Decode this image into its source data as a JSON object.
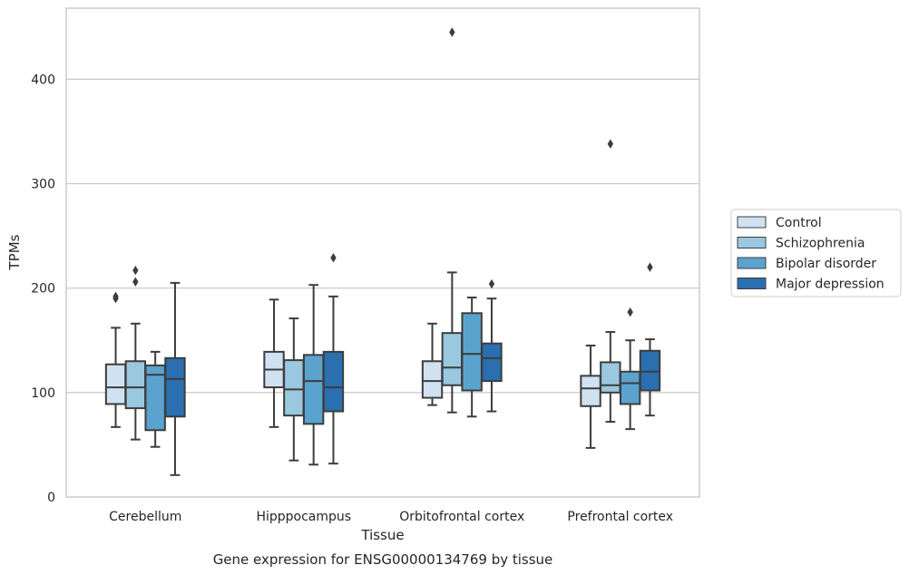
{
  "chart_data": {
    "type": "boxplot",
    "xlabel": "Tissue",
    "ylabel": "TPMs",
    "caption": "Gene expression for ENSG00000134769 by tissue",
    "categories": [
      "Cerebellum",
      "Hipppocampus",
      "Orbitofrontal cortex",
      "Prefrontal cortex"
    ],
    "ylim": [
      0,
      468
    ],
    "yticks": [
      "0",
      "100",
      "200",
      "300",
      "400"
    ],
    "grid": true,
    "legend_position": "right",
    "series": [
      {
        "name": "Control",
        "color": "#d0e1f2",
        "boxes": [
          {
            "whislo": 67,
            "q1": 89,
            "med": 105,
            "q3": 127,
            "whishi": 162,
            "fliers": [
              190,
              192
            ]
          },
          {
            "whislo": 67,
            "q1": 105,
            "med": 122,
            "q3": 139,
            "whishi": 189,
            "fliers": []
          },
          {
            "whislo": 88,
            "q1": 95,
            "med": 111,
            "q3": 130,
            "whishi": 166,
            "fliers": []
          },
          {
            "whislo": 47,
            "q1": 87,
            "med": 104,
            "q3": 116,
            "whishi": 145,
            "fliers": []
          }
        ]
      },
      {
        "name": "Schizophrenia",
        "color": "#9ac8e0",
        "boxes": [
          {
            "whislo": 55,
            "q1": 85,
            "med": 105,
            "q3": 130,
            "whishi": 166,
            "fliers": [
              206,
              217
            ]
          },
          {
            "whislo": 35,
            "q1": 78,
            "med": 103,
            "q3": 131,
            "whishi": 171,
            "fliers": []
          },
          {
            "whislo": 81,
            "q1": 107,
            "med": 124,
            "q3": 157,
            "whishi": 215,
            "fliers": [
              445
            ]
          },
          {
            "whislo": 72,
            "q1": 100,
            "med": 107,
            "q3": 129,
            "whishi": 158,
            "fliers": [
              338
            ]
          }
        ]
      },
      {
        "name": "Bipolar disorder",
        "color": "#5ba3cf",
        "boxes": [
          {
            "whislo": 48,
            "q1": 64,
            "med": 117,
            "q3": 126,
            "whishi": 139,
            "fliers": []
          },
          {
            "whislo": 31,
            "q1": 70,
            "med": 111,
            "q3": 136,
            "whishi": 203,
            "fliers": []
          },
          {
            "whislo": 77,
            "q1": 102,
            "med": 137,
            "q3": 176,
            "whishi": 191,
            "fliers": []
          },
          {
            "whislo": 65,
            "q1": 89,
            "med": 109,
            "q3": 120,
            "whishi": 150,
            "fliers": [
              177
            ]
          }
        ]
      },
      {
        "name": "Major depression",
        "color": "#2a6fb0",
        "boxes": [
          {
            "whislo": 21,
            "q1": 77,
            "med": 113,
            "q3": 133,
            "whishi": 205,
            "fliers": []
          },
          {
            "whislo": 32,
            "q1": 82,
            "med": 105,
            "q3": 139,
            "whishi": 192,
            "fliers": [
              229
            ]
          },
          {
            "whislo": 82,
            "q1": 111,
            "med": 133,
            "q3": 147,
            "whishi": 190,
            "fliers": [
              204
            ]
          },
          {
            "whislo": 78,
            "q1": 102,
            "med": 120,
            "q3": 140,
            "whishi": 151,
            "fliers": [
              220
            ]
          }
        ]
      }
    ]
  }
}
